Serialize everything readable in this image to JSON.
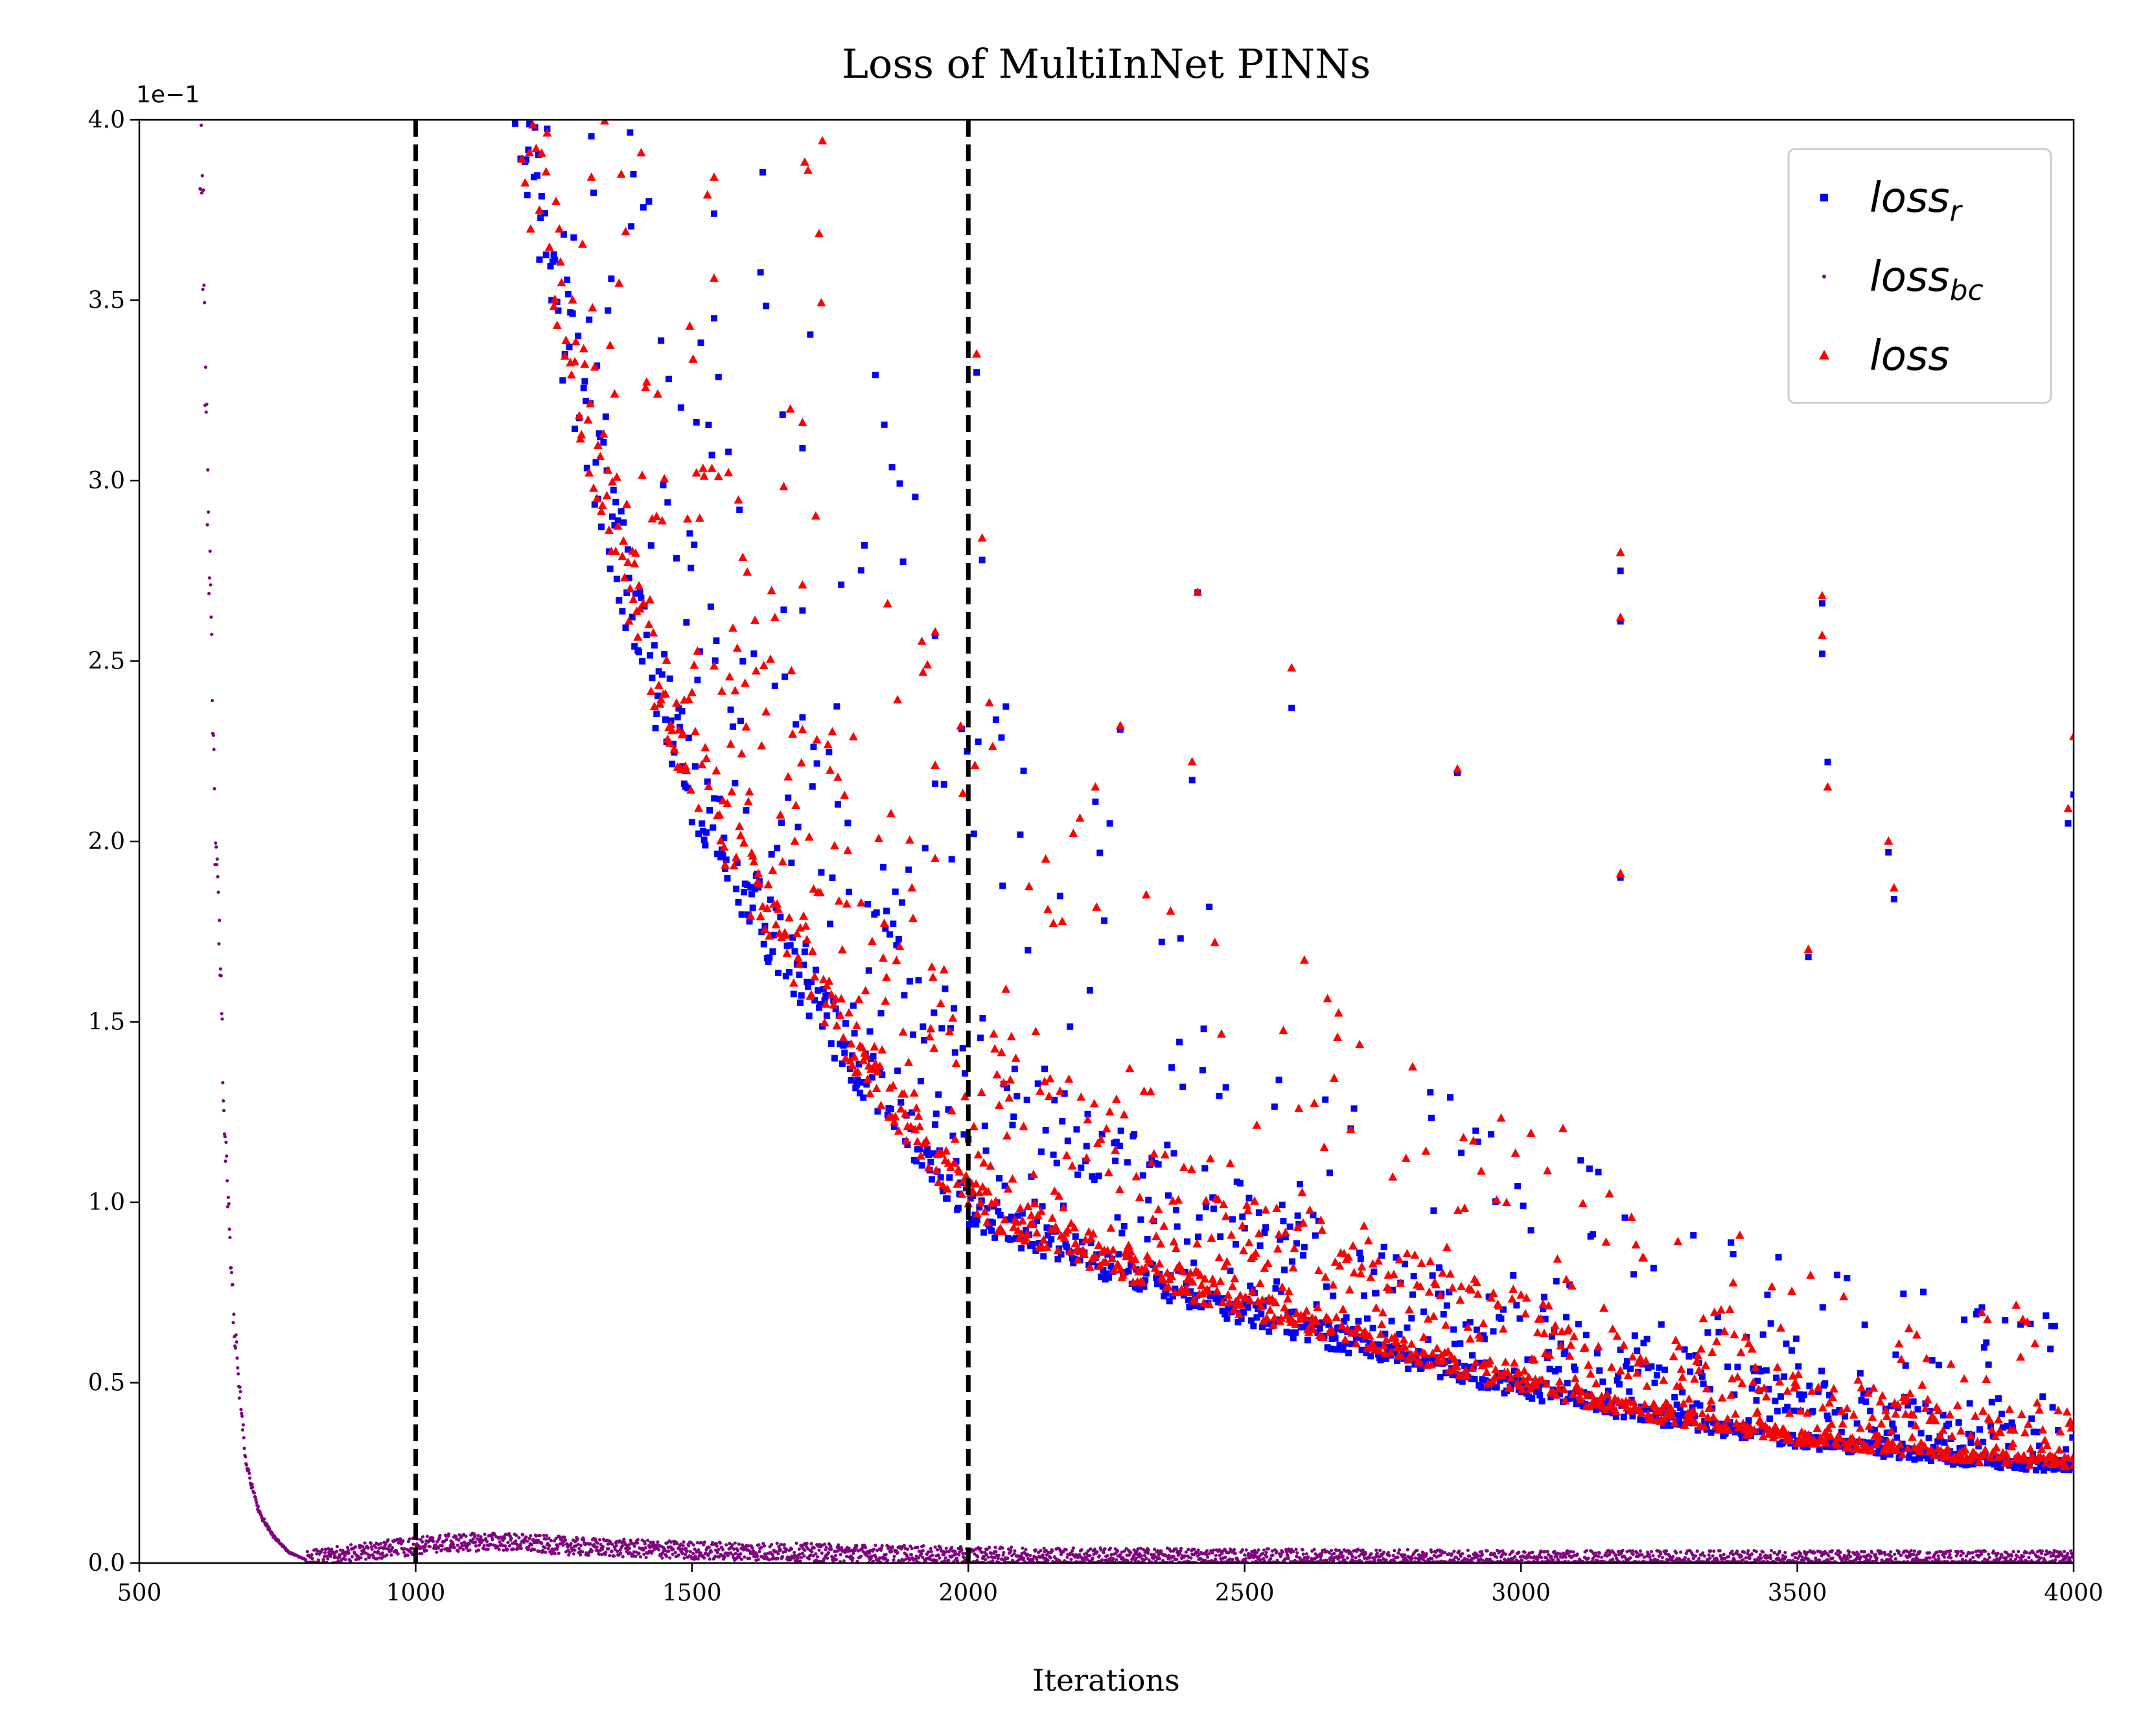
{
  "chart_data": {
    "type": "scatter",
    "title": "Loss of MultiInNet PINNs",
    "xlabel": "Iterations",
    "ylabel": "",
    "y_multiplier_label": "1e−1",
    "xlim": [
      500,
      4000
    ],
    "ylim": [
      0.0,
      4.0
    ],
    "x_ticks": [
      "500",
      "1000",
      "1500",
      "2000",
      "2500",
      "3000",
      "3500",
      "4000"
    ],
    "y_ticks": [
      "0.0",
      "0.5",
      "1.0",
      "1.5",
      "2.0",
      "2.5",
      "3.0",
      "3.5",
      "4.0"
    ],
    "vlines": [
      1000,
      2000
    ],
    "legend_position": "top-right",
    "grid": false,
    "series": [
      {
        "name": "loss_r",
        "legend_base": "loss",
        "legend_sub": "r",
        "marker": "square",
        "color": "#0000ff",
        "trend": [
          [
            1150,
            4.2
          ],
          [
            1200,
            3.7
          ],
          [
            1300,
            3.0
          ],
          [
            1400,
            2.45
          ],
          [
            1500,
            2.05
          ],
          [
            1600,
            1.75
          ],
          [
            1800,
            1.3
          ],
          [
            2000,
            0.93
          ],
          [
            2250,
            0.78
          ],
          [
            2500,
            0.66
          ],
          [
            2750,
            0.55
          ],
          [
            3000,
            0.46
          ],
          [
            3250,
            0.38
          ],
          [
            3500,
            0.32
          ],
          [
            3800,
            0.27
          ],
          [
            4000,
            0.25
          ]
        ],
        "spikes": [
          [
            1540,
            3.74
          ],
          [
            1540,
            3.45
          ],
          [
            1700,
            3.09
          ],
          [
            1700,
            2.64
          ],
          [
            2015,
            3.3
          ],
          [
            2025,
            2.78
          ],
          [
            2415,
            2.69
          ],
          [
            2585,
            2.37
          ],
          [
            2885,
            2.19
          ],
          [
            3180,
            2.75
          ],
          [
            3180,
            2.61
          ],
          [
            3545,
            2.66
          ],
          [
            3545,
            2.52
          ],
          [
            3555,
            2.22
          ],
          [
            4000,
            2.13
          ],
          [
            3990,
            2.05
          ],
          [
            2275,
            2.31
          ],
          [
            2230,
            2.11
          ],
          [
            2405,
            2.17
          ],
          [
            1940,
            2.16
          ],
          [
            1940,
            2.57
          ],
          [
            3665,
            1.97
          ],
          [
            3675,
            1.84
          ],
          [
            3520,
            1.68
          ],
          [
            3180,
            1.9
          ]
        ]
      },
      {
        "name": "loss_bc",
        "legend_base": "loss",
        "legend_sub": "bc",
        "marker": "point",
        "color": "#800080",
        "trend": [
          [
            610,
            3.95
          ],
          [
            615,
            3.73
          ],
          [
            618,
            3.4
          ],
          [
            622,
            3.07
          ],
          [
            626,
            2.8
          ],
          [
            630,
            2.55
          ],
          [
            634,
            2.22
          ],
          [
            638,
            1.95
          ],
          [
            642,
            1.85
          ],
          [
            648,
            1.55
          ],
          [
            655,
            1.18
          ],
          [
            662,
            0.95
          ],
          [
            670,
            0.7
          ],
          [
            680,
            0.5
          ],
          [
            692,
            0.3
          ],
          [
            705,
            0.2
          ],
          [
            720,
            0.13
          ],
          [
            740,
            0.08
          ],
          [
            770,
            0.03
          ],
          [
            800,
            0.01
          ],
          [
            850,
            0.02
          ],
          [
            950,
            0.04
          ],
          [
            1050,
            0.055
          ],
          [
            1150,
            0.06
          ],
          [
            1300,
            0.045
          ],
          [
            1500,
            0.035
          ],
          [
            1700,
            0.03
          ],
          [
            2000,
            0.02
          ],
          [
            2500,
            0.015
          ],
          [
            3000,
            0.01
          ],
          [
            3500,
            0.01
          ],
          [
            4000,
            0.01
          ]
        ],
        "spikes": []
      },
      {
        "name": "loss",
        "legend_base": "loss",
        "legend_sub": "",
        "marker": "triangle",
        "color": "#ff0000",
        "trend": [
          [
            1150,
            4.25
          ],
          [
            1200,
            3.75
          ],
          [
            1300,
            3.05
          ],
          [
            1400,
            2.5
          ],
          [
            1500,
            2.1
          ],
          [
            1600,
            1.8
          ],
          [
            1800,
            1.33
          ],
          [
            2000,
            0.95
          ],
          [
            2250,
            0.8
          ],
          [
            2500,
            0.68
          ],
          [
            2750,
            0.57
          ],
          [
            3000,
            0.47
          ],
          [
            3250,
            0.39
          ],
          [
            3500,
            0.33
          ],
          [
            3800,
            0.28
          ],
          [
            4000,
            0.26
          ]
        ],
        "spikes": [
          [
            1540,
            3.84
          ],
          [
            1540,
            3.56
          ],
          [
            1700,
            3.16
          ],
          [
            1700,
            2.71
          ],
          [
            2015,
            3.35
          ],
          [
            2025,
            2.84
          ],
          [
            2415,
            2.69
          ],
          [
            2585,
            2.48
          ],
          [
            2885,
            2.2
          ],
          [
            3180,
            2.8
          ],
          [
            3180,
            2.62
          ],
          [
            3545,
            2.68
          ],
          [
            3545,
            2.57
          ],
          [
            3555,
            2.15
          ],
          [
            4000,
            2.29
          ],
          [
            3990,
            2.09
          ],
          [
            2275,
            2.32
          ],
          [
            2230,
            2.15
          ],
          [
            2405,
            2.22
          ],
          [
            1940,
            2.21
          ],
          [
            1940,
            2.58
          ],
          [
            3665,
            2.0
          ],
          [
            3675,
            1.87
          ],
          [
            3520,
            1.7
          ],
          [
            3180,
            1.91
          ]
        ]
      }
    ]
  }
}
